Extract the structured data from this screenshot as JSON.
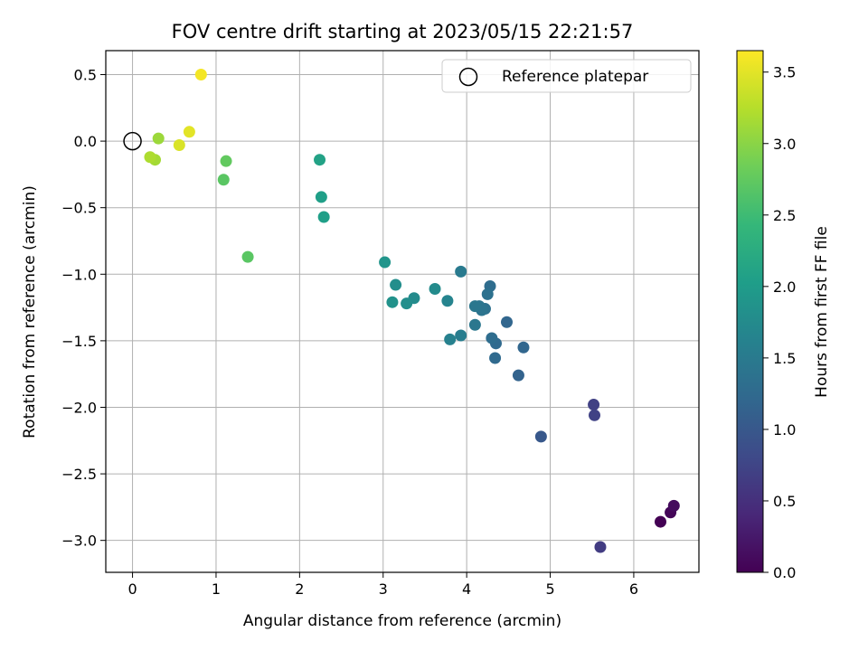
{
  "chart_data": {
    "type": "scatter",
    "title": "FOV centre drift starting at 2023/05/15 22:21:57",
    "xlabel": "Angular distance from reference (arcmin)",
    "ylabel": "Rotation from reference (arcmin)",
    "xlim": [
      -0.32,
      6.78
    ],
    "ylim": [
      -3.24,
      0.68
    ],
    "xticks": [
      0,
      1,
      2,
      3,
      4,
      5,
      6
    ],
    "xtick_labels": [
      "0",
      "1",
      "2",
      "3",
      "4",
      "5",
      "6"
    ],
    "yticks": [
      0.5,
      0.0,
      -0.5,
      -1.0,
      -1.5,
      -2.0,
      -2.5,
      -3.0
    ],
    "ytick_labels": [
      "0.5",
      "0.0",
      "−0.5",
      "−1.0",
      "−1.5",
      "−2.0",
      "−2.5",
      "−3.0"
    ],
    "grid": true,
    "legend": {
      "position": "top-right",
      "entries": [
        "Reference platepar"
      ]
    },
    "reference_point": {
      "x": 0.0,
      "y": 0.0
    },
    "colorbar": {
      "label": "Hours from first FF file",
      "colormap": "viridis",
      "range": [
        0.0,
        3.65
      ],
      "ticks": [
        0.0,
        0.5,
        1.0,
        1.5,
        2.0,
        2.5,
        3.0,
        3.5
      ],
      "tick_labels": [
        "0.0",
        "0.5",
        "1.0",
        "1.5",
        "2.0",
        "2.5",
        "3.0",
        "3.5"
      ],
      "stops": [
        "#440154",
        "#482878",
        "#3e4a89",
        "#31688e",
        "#26828e",
        "#1f9e89",
        "#35b779",
        "#6ece58",
        "#b5de2b",
        "#fde725"
      ]
    },
    "points": [
      {
        "x": 6.32,
        "y": -2.86,
        "c": 0.0
      },
      {
        "x": 6.44,
        "y": -2.79,
        "c": 0.05
      },
      {
        "x": 6.48,
        "y": -2.74,
        "c": 0.1
      },
      {
        "x": 5.6,
        "y": -3.05,
        "c": 0.65
      },
      {
        "x": 5.52,
        "y": -1.98,
        "c": 0.7
      },
      {
        "x": 5.53,
        "y": -2.06,
        "c": 0.72
      },
      {
        "x": 4.89,
        "y": -2.22,
        "c": 1.0
      },
      {
        "x": 4.62,
        "y": -1.76,
        "c": 1.15
      },
      {
        "x": 4.68,
        "y": -1.55,
        "c": 1.2
      },
      {
        "x": 4.48,
        "y": -1.36,
        "c": 1.2
      },
      {
        "x": 4.34,
        "y": -1.63,
        "c": 1.25
      },
      {
        "x": 4.35,
        "y": -1.52,
        "c": 1.25
      },
      {
        "x": 4.3,
        "y": -1.48,
        "c": 1.3
      },
      {
        "x": 4.28,
        "y": -1.09,
        "c": 1.3
      },
      {
        "x": 4.25,
        "y": -1.15,
        "c": 1.35
      },
      {
        "x": 4.22,
        "y": -1.26,
        "c": 1.35
      },
      {
        "x": 4.18,
        "y": -1.27,
        "c": 1.4
      },
      {
        "x": 4.15,
        "y": -1.24,
        "c": 1.4
      },
      {
        "x": 4.1,
        "y": -1.24,
        "c": 1.45
      },
      {
        "x": 4.1,
        "y": -1.38,
        "c": 1.45
      },
      {
        "x": 3.93,
        "y": -0.98,
        "c": 1.5
      },
      {
        "x": 3.93,
        "y": -1.46,
        "c": 1.55
      },
      {
        "x": 3.8,
        "y": -1.49,
        "c": 1.6
      },
      {
        "x": 3.77,
        "y": -1.2,
        "c": 1.65
      },
      {
        "x": 3.62,
        "y": -1.11,
        "c": 1.75
      },
      {
        "x": 3.37,
        "y": -1.18,
        "c": 1.75
      },
      {
        "x": 3.28,
        "y": -1.22,
        "c": 1.8
      },
      {
        "x": 3.15,
        "y": -1.08,
        "c": 1.8
      },
      {
        "x": 3.11,
        "y": -1.21,
        "c": 1.85
      },
      {
        "x": 3.02,
        "y": -0.91,
        "c": 1.9
      },
      {
        "x": 2.29,
        "y": -0.57,
        "c": 2.05
      },
      {
        "x": 2.26,
        "y": -0.42,
        "c": 2.05
      },
      {
        "x": 2.24,
        "y": -0.14,
        "c": 2.1
      },
      {
        "x": 1.38,
        "y": -0.87,
        "c": 2.7
      },
      {
        "x": 1.12,
        "y": -0.15,
        "c": 2.75
      },
      {
        "x": 1.09,
        "y": -0.29,
        "c": 2.7
      },
      {
        "x": 0.82,
        "y": 0.5,
        "c": 3.6
      },
      {
        "x": 0.68,
        "y": 0.07,
        "c": 3.5
      },
      {
        "x": 0.56,
        "y": -0.03,
        "c": 3.45
      },
      {
        "x": 0.31,
        "y": 0.02,
        "c": 3.1
      },
      {
        "x": 0.27,
        "y": -0.14,
        "c": 3.15
      },
      {
        "x": 0.21,
        "y": -0.12,
        "c": 3.2
      }
    ]
  }
}
